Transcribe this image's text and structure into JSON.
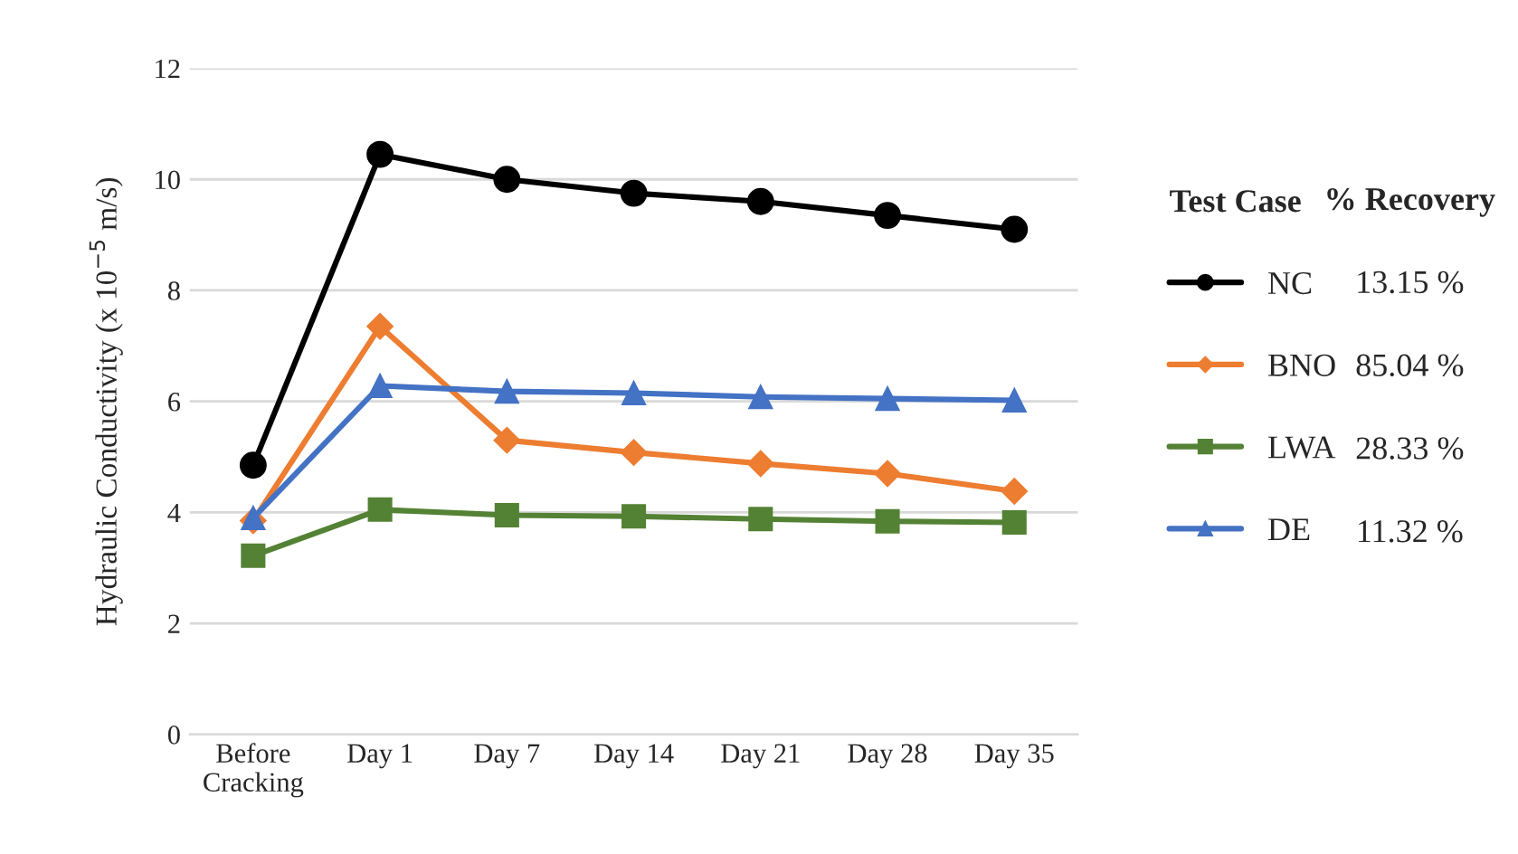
{
  "chart_data": {
    "type": "line",
    "ylabel": "Hydraulic Conductivity (x 10$^{−5}$ m/s)",
    "categories": [
      "Before\nCracking",
      "Day 1",
      "Day 7",
      "Day 14",
      "Day 21",
      "Day 28",
      "Day 35"
    ],
    "series": [
      {
        "name": "NC",
        "color": "#000000",
        "marker": "circle",
        "values": [
          4.85,
          10.45,
          10.0,
          9.75,
          9.6,
          9.35,
          9.1
        ]
      },
      {
        "name": "BNO",
        "color": "#ed7d31",
        "marker": "diamond",
        "values": [
          3.85,
          7.35,
          5.3,
          5.08,
          4.88,
          4.7,
          4.38
        ]
      },
      {
        "name": "LWA",
        "color": "#548235",
        "marker": "square",
        "values": [
          3.22,
          4.05,
          3.95,
          3.93,
          3.88,
          3.84,
          3.82
        ]
      },
      {
        "name": "DE",
        "color": "#4472c4",
        "marker": "triangle",
        "values": [
          3.9,
          6.28,
          6.18,
          6.15,
          6.08,
          6.05,
          6.02
        ]
      }
    ],
    "ylim": [
      0,
      12
    ],
    "yticks": [
      0,
      2,
      4,
      6,
      8,
      10,
      12
    ],
    "grid": "y",
    "legend": "right",
    "legend_title": "Test Case",
    "annotations": [
      "% Recovery",
      "13.15 %",
      "85.04 %",
      "28.33 %",
      "11.32 %"
    ]
  }
}
